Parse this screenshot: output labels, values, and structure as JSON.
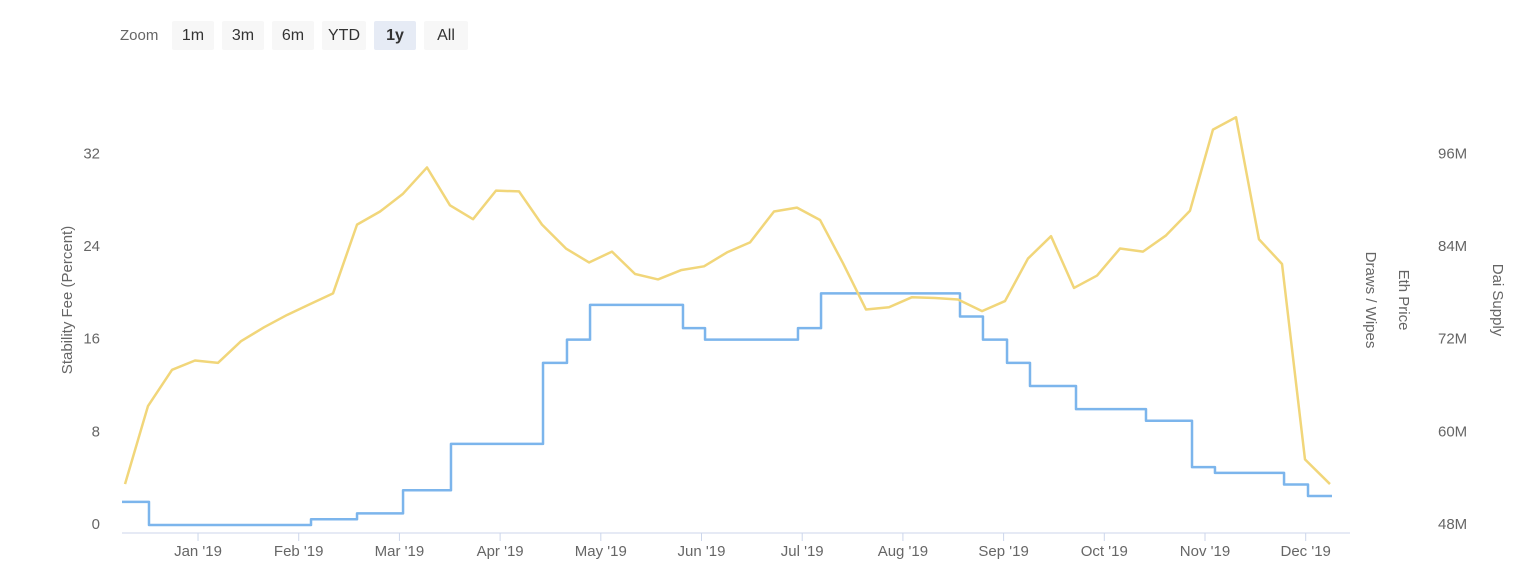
{
  "chart_data": {
    "type": "line",
    "range_selector": {
      "label": "Zoom",
      "buttons": [
        "1m",
        "3m",
        "6m",
        "YTD",
        "1y",
        "All"
      ],
      "selected": 4
    },
    "y_title": "Stability Fee (Percent)",
    "y2_titles": [
      "Draws / Wipes",
      "Eth Price",
      "Dai Supply"
    ],
    "xlim": [
      -0.755,
      11.44
    ],
    "xticks": [
      {
        "value": 0,
        "label": "Jan '19"
      },
      {
        "value": 1,
        "label": "Feb '19"
      },
      {
        "value": 2,
        "label": "Mar '19"
      },
      {
        "value": 3,
        "label": "Apr '19"
      },
      {
        "value": 4,
        "label": "May '19"
      },
      {
        "value": 5,
        "label": "Jun '19"
      },
      {
        "value": 6,
        "label": "Jul '19"
      },
      {
        "value": 7,
        "label": "Aug '19"
      },
      {
        "value": 8,
        "label": "Sep '19"
      },
      {
        "value": 9,
        "label": "Oct '19"
      },
      {
        "value": 10,
        "label": "Nov '19"
      },
      {
        "value": 11,
        "label": "Dec '19"
      }
    ],
    "ylim": [
      0,
      36
    ],
    "yticks": [
      0,
      8,
      16,
      24,
      32
    ],
    "y2lim": [
      48,
      102
    ],
    "y2ticks": [
      {
        "value": 48,
        "label": "48M"
      },
      {
        "value": 60,
        "label": "60M"
      },
      {
        "value": 72,
        "label": "72M"
      },
      {
        "value": 84,
        "label": "84M"
      },
      {
        "value": 96,
        "label": "96M"
      }
    ],
    "grid": false,
    "series": [
      {
        "color": "#7cb5ec",
        "step": true,
        "x": [
          -0.755,
          -0.487,
          1.122,
          1.579,
          2.036,
          2.512,
          3.426,
          3.664,
          3.893,
          4.816,
          5.035,
          5.958,
          6.187,
          7.567,
          7.795,
          8.034,
          8.262,
          8.719,
          9.414,
          9.871,
          10.099,
          10.785,
          11.023,
          11.261
        ],
        "values": [
          2,
          0,
          0.5,
          1,
          3,
          7,
          14,
          16,
          19,
          17,
          16,
          17,
          20,
          18,
          16,
          14,
          12,
          10,
          9,
          5,
          4.5,
          3.5,
          2.5,
          2.5
        ]
      },
      {
        "color": "#f1d67a",
        "axis": "y2",
        "x": [
          -0.725,
          -0.497,
          -0.258,
          -0.03,
          0.199,
          0.427,
          0.655,
          0.884,
          1.112,
          1.341,
          1.579,
          1.808,
          2.036,
          2.274,
          2.502,
          2.731,
          2.959,
          3.188,
          3.416,
          3.654,
          3.883,
          4.111,
          4.34,
          4.568,
          4.796,
          5.025,
          5.253,
          5.482,
          5.72,
          5.948,
          6.177,
          6.405,
          6.634,
          6.862,
          7.09,
          7.319,
          7.547,
          7.786,
          8.014,
          8.242,
          8.471,
          8.699,
          8.928,
          9.156,
          9.384,
          9.613,
          9.851,
          10.079,
          10.308,
          10.536,
          10.765,
          10.993,
          11.241
        ],
        "values": [
          53.3,
          63.4,
          68.1,
          69.3,
          69.0,
          71.8,
          73.6,
          75.2,
          76.6,
          78.0,
          86.9,
          88.6,
          90.9,
          94.3,
          89.4,
          87.6,
          91.3,
          91.2,
          86.9,
          83.8,
          82.0,
          83.4,
          80.5,
          79.8,
          81.0,
          81.5,
          83.3,
          84.6,
          88.6,
          89.1,
          87.5,
          81.9,
          75.9,
          76.2,
          77.5,
          77.4,
          77.2,
          75.7,
          77.0,
          82.5,
          85.4,
          78.7,
          80.3,
          83.8,
          83.4,
          85.5,
          88.7,
          99.2,
          100.8,
          85.0,
          81.8,
          56.5,
          53.3
        ]
      }
    ]
  }
}
